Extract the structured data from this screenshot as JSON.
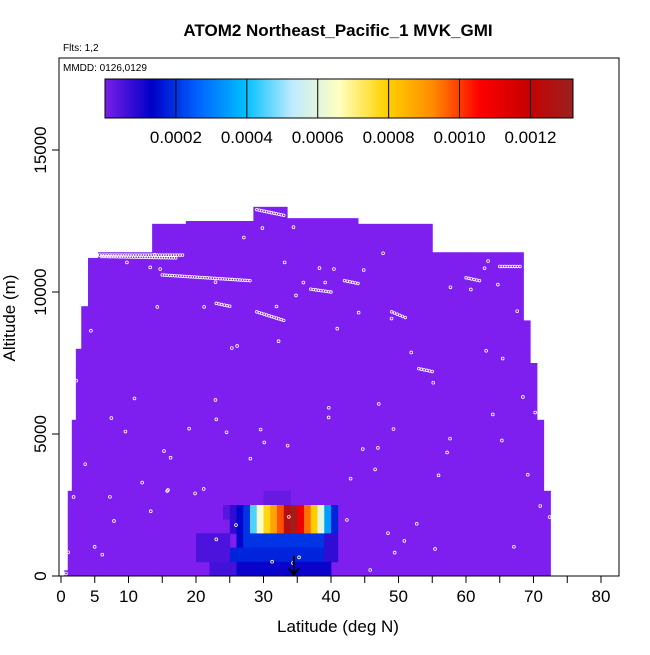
{
  "chart_data": {
    "type": "heatmap",
    "title": "ATOM2 Northeast_Pacific_1 MVK_GMI",
    "flights_note": "Flts: 1,2",
    "date_note": "MMDD: 0126,0129",
    "xlabel": "Latitude (deg N)",
    "ylabel": "Altitude (m)",
    "xlim": [
      0,
      85
    ],
    "ylim": [
      0,
      17500
    ],
    "x_ticks": [
      0,
      5,
      10,
      20,
      30,
      40,
      50,
      60,
      70,
      80
    ],
    "x_minor_ticks": [
      15,
      25,
      35,
      45,
      55,
      65,
      75
    ],
    "y_ticks": [
      0,
      5000,
      10000,
      15000
    ],
    "colorbar": {
      "range": [
        0,
        0.00132
      ],
      "tick_values": [
        "0.0002",
        "0.0004",
        "0.0006",
        "0.0008",
        "0.0010",
        "0.0012"
      ],
      "colors": [
        "#7a1fe8",
        "#0000c8",
        "#0064ff",
        "#00bfff",
        "#bfeaff",
        "#ffffc0",
        "#ffd200",
        "#ff8c00",
        "#ff0000",
        "#c80000",
        "#9c2020"
      ]
    },
    "background_value": 1e-05,
    "background_color": "#7f1fef",
    "curtain_columns": [
      {
        "x0": 0.5,
        "x1": 1,
        "top": 200
      },
      {
        "x0": 1,
        "x1": 1.6,
        "top": 3000
      },
      {
        "x0": 1.6,
        "x1": 2.2,
        "top": 5500
      },
      {
        "x0": 2.2,
        "x1": 3,
        "top": 8000
      },
      {
        "x0": 3,
        "x1": 4,
        "top": 9500
      },
      {
        "x0": 4,
        "x1": 5.5,
        "top": 11200
      },
      {
        "x0": 5.5,
        "x1": 9,
        "top": 11400
      },
      {
        "x0": 9,
        "x1": 13.5,
        "top": 11400
      },
      {
        "x0": 13.5,
        "x1": 18.5,
        "top": 12400
      },
      {
        "x0": 18.5,
        "x1": 28.5,
        "top": 12500
      },
      {
        "x0": 28.5,
        "x1": 33.5,
        "top": 13000
      },
      {
        "x0": 33.5,
        "x1": 44,
        "top": 12600
      },
      {
        "x0": 44,
        "x1": 55,
        "top": 12400
      },
      {
        "x0": 55,
        "x1": 60,
        "top": 11400
      },
      {
        "x0": 60,
        "x1": 66,
        "top": 11400
      },
      {
        "x0": 66,
        "x1": 68.5,
        "top": 11400
      },
      {
        "x0": 68.5,
        "x1": 69.5,
        "top": 9000
      },
      {
        "x0": 69.5,
        "x1": 70.5,
        "top": 7500
      },
      {
        "x0": 70.5,
        "x1": 71.5,
        "top": 5500
      },
      {
        "x0": 71.5,
        "x1": 72.5,
        "top": 3000
      }
    ],
    "background_rects": [
      {
        "x0": 65,
        "x1": 71,
        "y0": 3800,
        "y1": 4400
      },
      {
        "x0": 66,
        "x1": 71,
        "y0": 4400,
        "y1": 5000
      }
    ],
    "cells": [
      {
        "x0": 30,
        "x1": 34,
        "y0": 2500,
        "y1": 3000,
        "value": 2e-05
      },
      {
        "x0": 24,
        "x1": 28,
        "y0": 2000,
        "y1": 2500,
        "value": 4e-05
      },
      {
        "x0": 25,
        "x1": 27,
        "y0": 1500,
        "y1": 2500,
        "value": 8e-05
      },
      {
        "x0": 26,
        "x1": 27,
        "y0": 1000,
        "y1": 2500,
        "value": 0.00014
      },
      {
        "x0": 27,
        "x1": 28,
        "y0": 1500,
        "y1": 2500,
        "value": 0.0002
      },
      {
        "x0": 28,
        "x1": 29,
        "y0": 1500,
        "y1": 2500,
        "value": 0.00045
      },
      {
        "x0": 29,
        "x1": 30,
        "y0": 1500,
        "y1": 2500,
        "value": 0.00065
      },
      {
        "x0": 30,
        "x1": 31,
        "y0": 1500,
        "y1": 2500,
        "value": 0.00078
      },
      {
        "x0": 31,
        "x1": 32,
        "y0": 1500,
        "y1": 2500,
        "value": 0.00088
      },
      {
        "x0": 32,
        "x1": 33,
        "y0": 1500,
        "y1": 2500,
        "value": 0.00098
      },
      {
        "x0": 33,
        "x1": 34,
        "y0": 1500,
        "y1": 2500,
        "value": 0.00125
      },
      {
        "x0": 34,
        "x1": 35,
        "y0": 1500,
        "y1": 2500,
        "value": 0.0013
      },
      {
        "x0": 35,
        "x1": 36,
        "y0": 1500,
        "y1": 2500,
        "value": 0.0011
      },
      {
        "x0": 36,
        "x1": 37,
        "y0": 1500,
        "y1": 2500,
        "value": 0.00095
      },
      {
        "x0": 37,
        "x1": 38,
        "y0": 1500,
        "y1": 2500,
        "value": 0.0008
      },
      {
        "x0": 38,
        "x1": 39,
        "y0": 1500,
        "y1": 2500,
        "value": 0.0006
      },
      {
        "x0": 39,
        "x1": 40,
        "y0": 1500,
        "y1": 2500,
        "value": 0.00035
      },
      {
        "x0": 40,
        "x1": 41,
        "y0": 1500,
        "y1": 2500,
        "value": 0.00018
      },
      {
        "x0": 27,
        "x1": 39,
        "y0": 1000,
        "y1": 1500,
        "value": 0.0002
      },
      {
        "x0": 25,
        "x1": 40,
        "y0": 500,
        "y1": 1000,
        "value": 0.00018
      },
      {
        "x0": 20,
        "x1": 25,
        "y0": 500,
        "y1": 1500,
        "value": 5e-05
      },
      {
        "x0": 39,
        "x1": 41,
        "y0": 500,
        "y1": 1500,
        "value": 8e-05
      },
      {
        "x0": 22,
        "x1": 26,
        "y0": 0,
        "y1": 500,
        "value": 6e-05
      },
      {
        "x0": 26,
        "x1": 40,
        "y0": 0,
        "y1": 500,
        "value": 0.00012
      }
    ],
    "flight_tracks": [
      {
        "points": [
          [
            3.5,
            11300
          ],
          [
            18,
            11300
          ]
        ]
      },
      {
        "points": [
          [
            6,
            11250
          ],
          [
            17,
            11200
          ]
        ]
      },
      {
        "points": [
          [
            8,
            12200
          ],
          [
            11,
            12200
          ]
        ]
      },
      {
        "points": [
          [
            14,
            12500
          ],
          [
            17,
            12500
          ]
        ]
      },
      {
        "points": [
          [
            29,
            12900
          ],
          [
            33,
            12700
          ]
        ]
      },
      {
        "points": [
          [
            15,
            10600
          ],
          [
            28,
            10400
          ]
        ]
      },
      {
        "points": [
          [
            23,
            9600
          ],
          [
            25,
            9500
          ]
        ]
      },
      {
        "points": [
          [
            29,
            9300
          ],
          [
            33,
            9000
          ]
        ]
      },
      {
        "points": [
          [
            37,
            10100
          ],
          [
            40,
            10000
          ]
        ]
      },
      {
        "points": [
          [
            42,
            10400
          ],
          [
            44,
            10300
          ]
        ]
      },
      {
        "points": [
          [
            49,
            9300
          ],
          [
            51,
            9100
          ]
        ]
      },
      {
        "points": [
          [
            53,
            7300
          ],
          [
            55,
            7200
          ]
        ]
      },
      {
        "points": [
          [
            60,
            10500
          ],
          [
            62,
            10400
          ]
        ]
      },
      {
        "points": [
          [
            65,
            10900
          ],
          [
            68,
            10900
          ]
        ]
      }
    ],
    "marker": {
      "x": 34.5,
      "y": 0
    }
  }
}
